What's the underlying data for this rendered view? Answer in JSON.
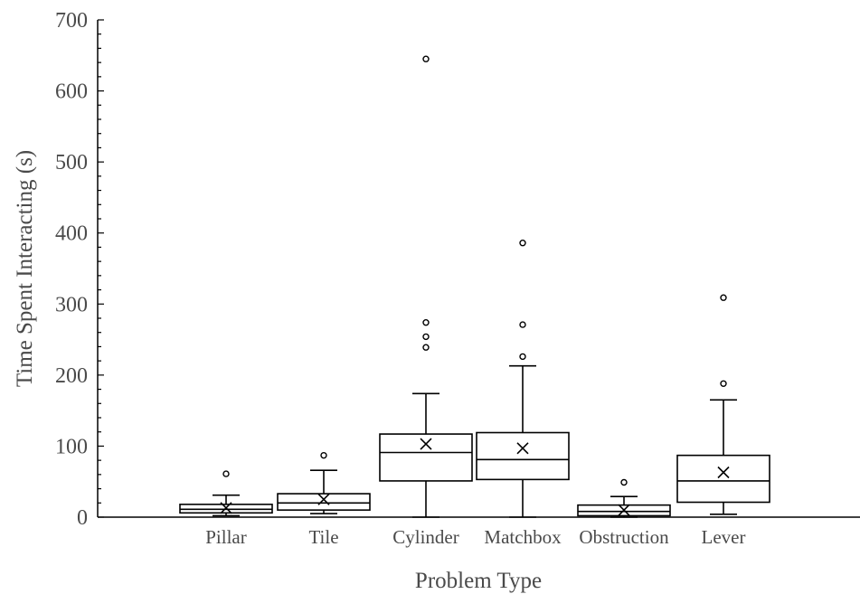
{
  "chart_data": {
    "type": "box",
    "xlabel": "Problem Type",
    "ylabel": "Time Spent Interacting (s)",
    "ylim": [
      0,
      700
    ],
    "y_ticks": [
      0,
      100,
      200,
      300,
      400,
      500,
      600,
      700
    ],
    "grid": false,
    "categories": [
      "Pillar",
      "Tile",
      "Cylinder",
      "Matchbox",
      "Obstruction",
      "Lever"
    ],
    "boxes": [
      {
        "category": "Pillar",
        "min": 2,
        "q1": 6,
        "median": 11,
        "q3": 18,
        "max": 31,
        "mean": 13,
        "outliers": [
          61
        ]
      },
      {
        "category": "Tile",
        "min": 5,
        "q1": 10,
        "median": 20,
        "q3": 33,
        "max": 66,
        "mean": 25,
        "outliers": [
          87
        ]
      },
      {
        "category": "Cylinder",
        "min": 0,
        "q1": 51,
        "median": 91,
        "q3": 117,
        "max": 174,
        "mean": 103,
        "outliers": [
          239,
          254,
          274,
          645
        ]
      },
      {
        "category": "Matchbox",
        "min": 0,
        "q1": 53,
        "median": 81,
        "q3": 119,
        "max": 213,
        "mean": 97,
        "outliers": [
          226,
          271,
          386
        ]
      },
      {
        "category": "Obstruction",
        "min": 0,
        "q1": 2,
        "median": 8,
        "q3": 17,
        "max": 29,
        "mean": 10,
        "outliers": [
          49
        ]
      },
      {
        "category": "Lever",
        "min": 4,
        "q1": 21,
        "median": 51,
        "q3": 87,
        "max": 165,
        "mean": 63,
        "outliers": [
          188,
          309
        ]
      }
    ]
  }
}
